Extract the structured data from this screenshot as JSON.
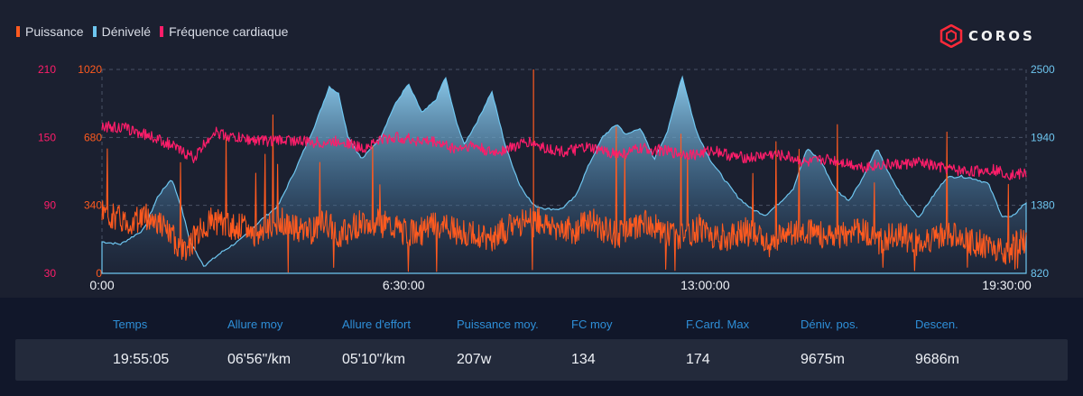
{
  "legend": [
    {
      "label": "Puissance",
      "color": "#ff5a1f"
    },
    {
      "label": "Dénivelé",
      "color": "#6ec6f0"
    },
    {
      "label": "Fréquence cardiaque",
      "color": "#ff1d6a"
    }
  ],
  "brand": "COROS",
  "colors": {
    "power": "#ff5a1f",
    "elevation": "#6ec6f0",
    "heart_rate": "#ff1d6a",
    "grid": "#4a5266",
    "background": "#1b2030"
  },
  "chart_data": {
    "type": "line",
    "x_ticks": [
      "0:00",
      "6:30:00",
      "13:00:00",
      "19:30:00"
    ],
    "x_range_hours": [
      0,
      19.917
    ],
    "axes": {
      "heart_rate": {
        "ticks": [
          "210",
          "150",
          "90",
          "30"
        ],
        "range": [
          30,
          210
        ],
        "side": "left-outer"
      },
      "power": {
        "ticks": [
          "1020",
          "680",
          "340",
          "0"
        ],
        "range": [
          0,
          1020
        ],
        "side": "left-inner"
      },
      "elevation": {
        "ticks": [
          "2500",
          "1940",
          "1380",
          "820"
        ],
        "range": [
          820,
          2500
        ],
        "side": "right"
      }
    },
    "grid": true,
    "series": [
      {
        "name": "Dénivelé",
        "axis": "elevation",
        "style": "area",
        "x": [
          0,
          0.4,
          0.9,
          1.2,
          1.5,
          1.7,
          1.9,
          2.2,
          2.6,
          3.0,
          3.4,
          3.8,
          4.2,
          4.6,
          4.9,
          5.1,
          5.3,
          5.6,
          6.0,
          6.3,
          6.6,
          6.9,
          7.2,
          7.4,
          7.6,
          7.8,
          8.1,
          8.4,
          8.7,
          9.0,
          9.3,
          9.6,
          9.9,
          10.2,
          10.5,
          10.8,
          11.1,
          11.3,
          11.6,
          11.9,
          12.2,
          12.5,
          12.8,
          13.1,
          13.4,
          13.7,
          14.0,
          14.3,
          14.6,
          14.9,
          15.2,
          15.5,
          15.8,
          16.1,
          16.4,
          16.7,
          17.0,
          17.3,
          17.6,
          17.9,
          18.2,
          18.5,
          18.8,
          19.1,
          19.4,
          19.6,
          19.9
        ],
        "y": [
          1080,
          1060,
          1180,
          1450,
          1600,
          1380,
          1080,
          880,
          1000,
          1100,
          1250,
          1380,
          1700,
          2050,
          2360,
          2300,
          1950,
          1760,
          1940,
          2200,
          2380,
          2140,
          2250,
          2440,
          2120,
          1880,
          2080,
          2320,
          1860,
          1550,
          1380,
          1350,
          1350,
          1450,
          1720,
          1950,
          2050,
          1960,
          2020,
          1760,
          2000,
          2450,
          2000,
          1760,
          1600,
          1450,
          1350,
          1300,
          1400,
          1520,
          1850,
          1740,
          1510,
          1420,
          1610,
          1850,
          1610,
          1420,
          1280,
          1450,
          1610,
          1620,
          1600,
          1560,
          1290,
          1280,
          1400
        ]
      },
      {
        "name": "Fréquence cardiaque",
        "axis": "heart_rate",
        "style": "line",
        "x": [
          0,
          0.5,
          1.0,
          1.4,
          1.7,
          2.0,
          2.4,
          2.8,
          3.2,
          3.6,
          4.0,
          4.4,
          4.8,
          5.2,
          5.6,
          6.0,
          6.4,
          6.8,
          7.2,
          7.6,
          8.0,
          8.4,
          8.8,
          9.2,
          9.6,
          10.0,
          10.4,
          10.8,
          11.2,
          11.6,
          12.0,
          12.4,
          12.8,
          13.2,
          13.6,
          14.0,
          14.4,
          14.8,
          15.2,
          15.6,
          16.0,
          16.4,
          16.8,
          17.2,
          17.6,
          18.0,
          18.4,
          18.8,
          19.2,
          19.6,
          19.9
        ],
        "y": [
          160,
          158,
          152,
          145,
          138,
          132,
          155,
          150,
          148,
          147,
          148,
          146,
          145,
          147,
          140,
          148,
          150,
          147,
          146,
          140,
          143,
          136,
          141,
          146,
          140,
          137,
          141,
          138,
          135,
          140,
          139,
          136,
          135,
          139,
          133,
          132,
          135,
          133,
          127,
          131,
          128,
          124,
          126,
          126,
          128,
          124,
          121,
          120,
          122,
          117,
          118
        ]
      },
      {
        "name": "Puissance",
        "axis": "power",
        "style": "line",
        "x": [
          0,
          0.3,
          0.6,
          0.9,
          1.2,
          1.5,
          1.8,
          2.1,
          2.4,
          2.7,
          3.0,
          3.3,
          3.6,
          3.9,
          4.2,
          4.5,
          4.8,
          5.1,
          5.4,
          5.7,
          6.0,
          6.3,
          6.6,
          6.9,
          7.2,
          7.5,
          7.8,
          8.1,
          8.4,
          8.7,
          9.0,
          9.3,
          9.6,
          9.9,
          10.2,
          10.5,
          10.8,
          11.1,
          11.4,
          11.7,
          12.0,
          12.3,
          12.6,
          12.9,
          13.2,
          13.5,
          13.8,
          14.1,
          14.4,
          14.7,
          15.0,
          15.3,
          15.6,
          15.9,
          16.2,
          16.5,
          16.8,
          17.1,
          17.4,
          17.7,
          18.0,
          18.3,
          18.6,
          18.9,
          19.2,
          19.5,
          19.8
        ],
        "y": [
          300,
          280,
          250,
          290,
          260,
          180,
          120,
          210,
          270,
          240,
          230,
          200,
          230,
          260,
          220,
          210,
          260,
          190,
          230,
          270,
          250,
          230,
          200,
          210,
          240,
          220,
          200,
          190,
          170,
          220,
          250,
          280,
          240,
          230,
          210,
          270,
          220,
          190,
          230,
          250,
          220,
          200,
          180,
          230,
          190,
          170,
          220,
          180,
          150,
          200,
          220,
          210,
          190,
          170,
          230,
          190,
          160,
          210,
          170,
          140,
          180,
          200,
          160,
          150,
          130,
          110,
          160
        ]
      }
    ]
  },
  "stats": {
    "headers": [
      "Temps",
      "Allure moy",
      "Allure d'effort",
      "Puissance moy.",
      "FC moy",
      "F.Card. Max",
      "Déniv. pos.",
      "Descen."
    ],
    "values": [
      "19:55:05",
      "06'56\"/km",
      "05'10\"/km",
      "207w",
      "134",
      "174",
      "9675m",
      "9686m"
    ]
  }
}
